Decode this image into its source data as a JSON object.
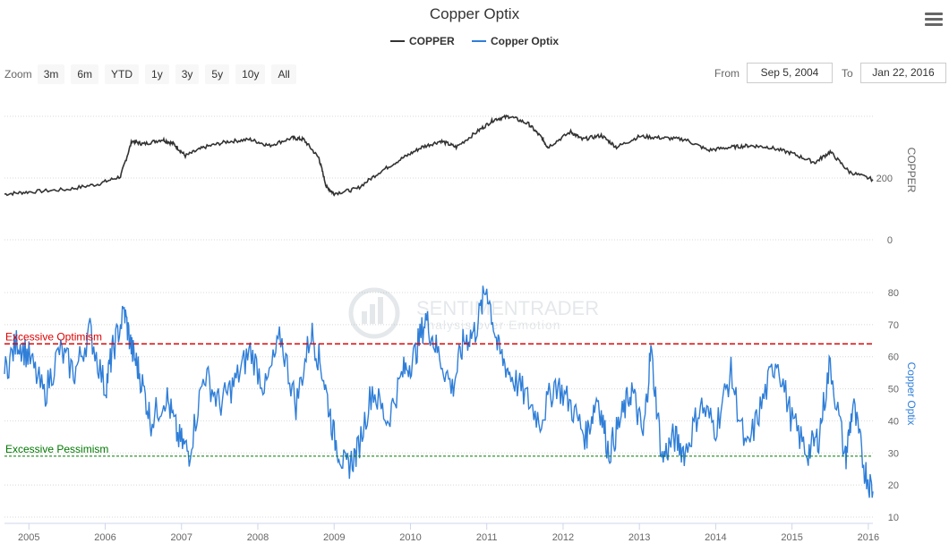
{
  "title": "Copper Optix",
  "menu_icon": "hamburger-menu-icon",
  "legend": [
    {
      "label": "COPPER",
      "color": "#333333"
    },
    {
      "label": "Copper Optix",
      "color": "#2f7ed8"
    }
  ],
  "zoom": {
    "label": "Zoom",
    "buttons": [
      "3m",
      "6m",
      "YTD",
      "1y",
      "3y",
      "5y",
      "10y",
      "All"
    ]
  },
  "range": {
    "from_label": "From",
    "from_value": "Sep 5, 2004",
    "to_label": "To",
    "to_value": "Jan 22, 2016"
  },
  "watermark": {
    "name": "SENTIMENTRADER",
    "tagline": "Analysis over Emotion"
  },
  "chart_data": [
    {
      "type": "line",
      "name": "COPPER",
      "ylabel": "COPPER",
      "yticks": [
        "0",
        "200"
      ],
      "color": "#333333",
      "x": [
        2004.68,
        2005.0,
        2005.5,
        2005.9,
        2006.2,
        2006.35,
        2006.5,
        2006.75,
        2006.9,
        2007.05,
        2007.3,
        2007.6,
        2007.9,
        2008.15,
        2008.45,
        2008.6,
        2008.8,
        2008.9,
        2009.0,
        2009.3,
        2009.6,
        2009.9,
        2010.15,
        2010.4,
        2010.6,
        2010.9,
        2011.1,
        2011.3,
        2011.55,
        2011.72,
        2011.8,
        2012.1,
        2012.25,
        2012.5,
        2012.7,
        2013.0,
        2013.3,
        2013.6,
        2013.9,
        2014.2,
        2014.45,
        2014.7,
        2015.0,
        2015.3,
        2015.5,
        2015.75,
        2016.06
      ],
      "y": [
        148,
        155,
        163,
        180,
        205,
        320,
        310,
        325,
        310,
        272,
        300,
        318,
        325,
        305,
        330,
        325,
        265,
        170,
        150,
        165,
        220,
        265,
        300,
        320,
        300,
        355,
        390,
        400,
        375,
        330,
        300,
        350,
        325,
        338,
        300,
        335,
        330,
        325,
        290,
        300,
        305,
        300,
        280,
        250,
        285,
        220,
        195
      ]
    },
    {
      "type": "line",
      "name": "Copper Optix",
      "ylabel": "Copper Optix",
      "yticks": [
        "10",
        "20",
        "30",
        "40",
        "50",
        "60",
        "70",
        "80"
      ],
      "color": "#2f7ed8",
      "x": [
        2004.68,
        2004.85,
        2005.0,
        2005.2,
        2005.4,
        2005.6,
        2005.8,
        2006.0,
        2006.1,
        2006.25,
        2006.35,
        2006.45,
        2006.6,
        2006.8,
        2006.95,
        2007.1,
        2007.3,
        2007.5,
        2007.7,
        2007.9,
        2008.1,
        2008.3,
        2008.5,
        2008.7,
        2008.85,
        2009.0,
        2009.15,
        2009.3,
        2009.5,
        2009.7,
        2009.9,
        2010.05,
        2010.2,
        2010.35,
        2010.55,
        2010.7,
        2010.85,
        2011.0,
        2011.15,
        2011.3,
        2011.5,
        2011.7,
        2011.9,
        2012.1,
        2012.3,
        2012.45,
        2012.6,
        2012.75,
        2012.9,
        2013.05,
        2013.15,
        2013.3,
        2013.45,
        2013.6,
        2013.8,
        2014.0,
        2014.2,
        2014.4,
        2014.6,
        2014.8,
        2015.0,
        2015.2,
        2015.35,
        2015.5,
        2015.7,
        2015.8,
        2015.95,
        2016.06
      ],
      "y": [
        55,
        65,
        60,
        48,
        62,
        55,
        68,
        50,
        62,
        74,
        62,
        55,
        40,
        48,
        35,
        30,
        55,
        45,
        52,
        62,
        50,
        66,
        45,
        68,
        55,
        35,
        25,
        30,
        50,
        40,
        55,
        60,
        72,
        62,
        50,
        65,
        68,
        82,
        62,
        55,
        48,
        40,
        52,
        45,
        35,
        48,
        30,
        40,
        50,
        35,
        62,
        28,
        35,
        30,
        45,
        38,
        55,
        30,
        45,
        60,
        40,
        30,
        35,
        58,
        28,
        45,
        25,
        18
      ]
    }
  ],
  "optix_bands": [
    {
      "label": "Excessive Optimism",
      "value": 64,
      "color": "#dd0000"
    },
    {
      "label": "Excessive Pessimism",
      "value": 29,
      "color": "#007700"
    }
  ],
  "x_axis_labels": [
    "2005",
    "2006",
    "2007",
    "2008",
    "2009",
    "2010",
    "2011",
    "2012",
    "2013",
    "2014",
    "2015",
    "2016"
  ]
}
